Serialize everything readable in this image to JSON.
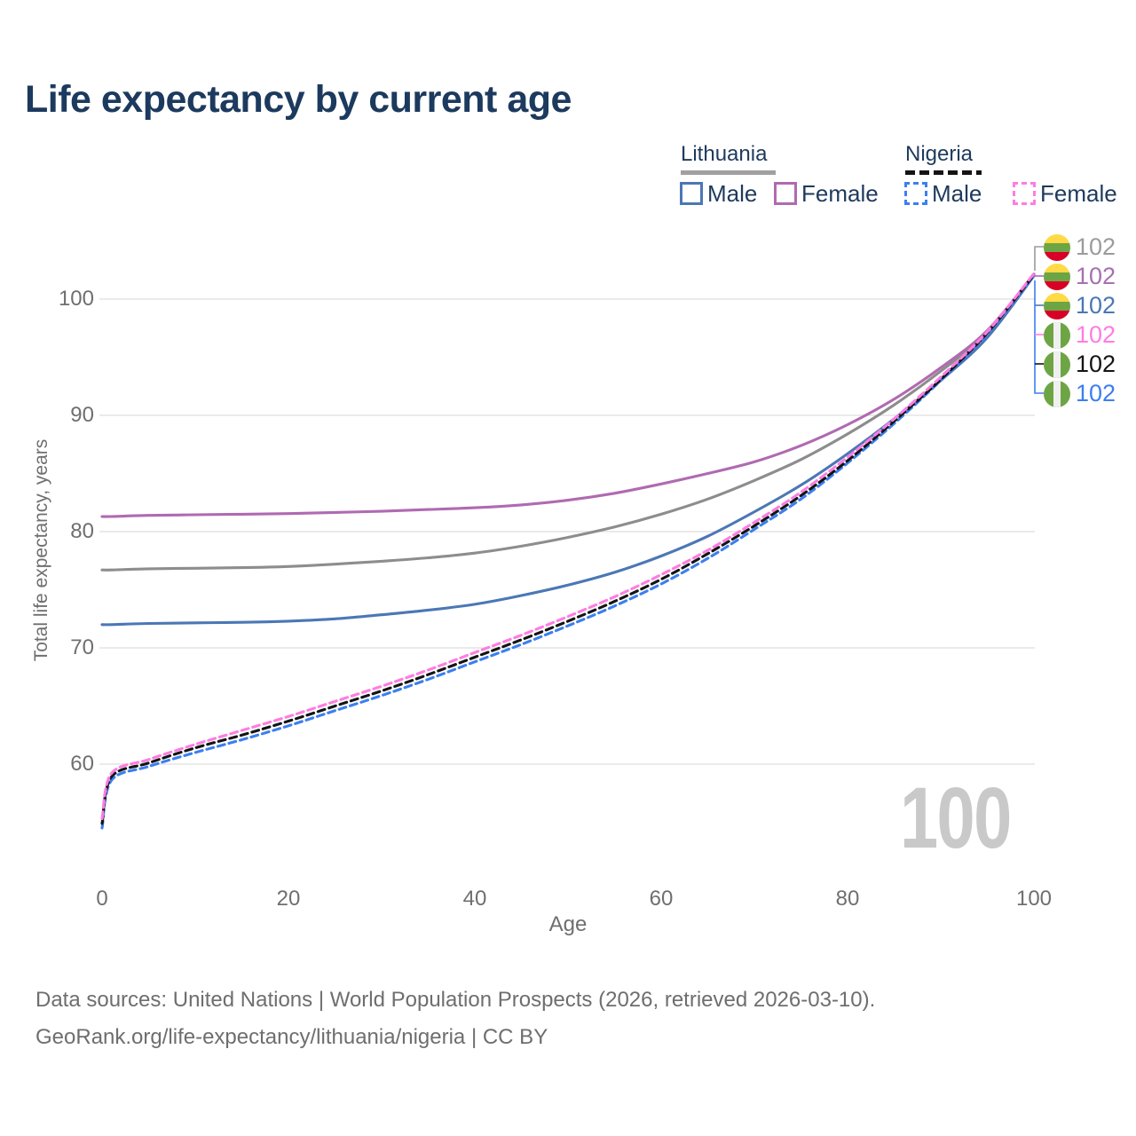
{
  "title": "Life expectancy by current age",
  "legend": {
    "countries": [
      {
        "name": "Lithuania",
        "line_style": "solid",
        "underline_color": "#a0a0a0"
      },
      {
        "name": "Nigeria",
        "line_style": "dashed",
        "underline_color": "#141414"
      }
    ],
    "items": [
      {
        "country": "Lithuania",
        "label": "Male",
        "color": "#4b77b5",
        "dashed": false
      },
      {
        "country": "Lithuania",
        "label": "Female",
        "color": "#b06ab1",
        "dashed": false
      },
      {
        "country": "Nigeria",
        "label": "Male",
        "color": "#3b7ff0",
        "dashed": true
      },
      {
        "country": "Nigeria",
        "label": "Female",
        "color": "#ff7ce2",
        "dashed": true
      }
    ]
  },
  "watermark": "100",
  "chart_data": {
    "type": "line",
    "title": "Life expectancy by current age",
    "xlabel": "Age",
    "ylabel": "Total life expectancy, years",
    "xlim": [
      0,
      100
    ],
    "ylim": [
      54,
      103
    ],
    "x_ticks": [
      0,
      20,
      40,
      60,
      80,
      100
    ],
    "y_ticks": [
      60,
      70,
      80,
      90,
      100
    ],
    "grid": true,
    "legend_position": "top-right",
    "x": [
      0,
      1,
      5,
      10,
      15,
      20,
      25,
      30,
      35,
      40,
      45,
      50,
      55,
      60,
      65,
      70,
      75,
      80,
      85,
      90,
      95,
      100
    ],
    "series": [
      {
        "name": "Lithuania Both sexes",
        "country": "Lithuania",
        "sex": "both",
        "line": "solid",
        "color": "#8d8d8d",
        "label_color": "#9b9b9b",
        "flag": "lt",
        "end_label": "102",
        "values": [
          76.7,
          76.7,
          76.8,
          76.85,
          76.9,
          77.0,
          77.2,
          77.45,
          77.75,
          78.15,
          78.75,
          79.5,
          80.4,
          81.5,
          82.8,
          84.4,
          86.2,
          88.4,
          90.9,
          93.8,
          97.1,
          102.1
        ]
      },
      {
        "name": "Lithuania Female",
        "country": "Lithuania",
        "sex": "female",
        "line": "solid",
        "color": "#b06ab1",
        "label_color": "#a76fb0",
        "flag": "lt",
        "end_label": "102",
        "values": [
          81.3,
          81.3,
          81.4,
          81.45,
          81.5,
          81.55,
          81.65,
          81.75,
          81.9,
          82.05,
          82.3,
          82.7,
          83.3,
          84.1,
          85.0,
          86.0,
          87.4,
          89.2,
          91.4,
          94.1,
          97.3,
          102.15
        ]
      },
      {
        "name": "Lithuania Male",
        "country": "Lithuania",
        "sex": "male",
        "line": "solid",
        "color": "#4b77b5",
        "label_color": "#4b77b5",
        "flag": "lt",
        "end_label": "102",
        "values": [
          72.0,
          72.0,
          72.1,
          72.15,
          72.2,
          72.3,
          72.5,
          72.85,
          73.25,
          73.75,
          74.5,
          75.4,
          76.5,
          77.9,
          79.6,
          81.7,
          84.0,
          86.7,
          89.7,
          93.0,
          96.7,
          102.0
        ]
      },
      {
        "name": "Nigeria Female",
        "country": "Nigeria",
        "sex": "female",
        "line": "dashed",
        "color": "#ff7ce2",
        "label_color": "#ff7ce2",
        "flag": "ng",
        "end_label": "102",
        "values": [
          55.3,
          59.2,
          60.4,
          61.7,
          62.9,
          64.1,
          65.4,
          66.7,
          68.1,
          69.6,
          71.1,
          72.7,
          74.4,
          76.3,
          78.4,
          80.8,
          83.4,
          86.4,
          89.7,
          93.3,
          97.2,
          102.2
        ]
      },
      {
        "name": "Nigeria Both sexes",
        "country": "Nigeria",
        "sex": "both",
        "line": "dashed",
        "color": "#141414",
        "label_color": "#141414",
        "flag": "ng",
        "end_label": "102",
        "values": [
          54.9,
          58.9,
          60.1,
          61.4,
          62.5,
          63.7,
          65.0,
          66.3,
          67.7,
          69.2,
          70.7,
          72.3,
          74.0,
          75.9,
          78.1,
          80.5,
          83.1,
          86.1,
          89.5,
          93.1,
          97.1,
          102.1
        ]
      },
      {
        "name": "Nigeria Male",
        "country": "Nigeria",
        "sex": "male",
        "line": "dashed",
        "color": "#3b7ff0",
        "label_color": "#3b7ff0",
        "flag": "ng",
        "end_label": "102",
        "values": [
          54.5,
          58.6,
          59.8,
          61.0,
          62.1,
          63.3,
          64.6,
          65.9,
          67.3,
          68.8,
          70.3,
          71.9,
          73.6,
          75.5,
          77.7,
          80.2,
          82.8,
          85.9,
          89.3,
          93.0,
          97.0,
          102.0
        ]
      }
    ],
    "flag_colors": {
      "lt": [
        "#FFDA44",
        "#6DA544",
        "#D80027"
      ],
      "ng": [
        "#6DA544",
        "#F0F0F0"
      ]
    }
  },
  "footer": {
    "line1": "Data sources: United Nations | World Population Prospects (2026, retrieved 2026-03-10).",
    "line2": "GeoRank.org/life-expectancy/lithuania/nigeria | CC BY"
  }
}
